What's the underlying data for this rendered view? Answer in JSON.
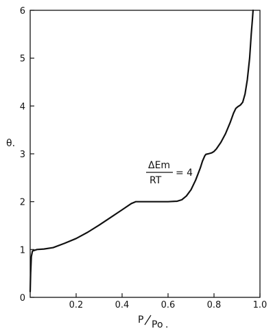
{
  "chart_data": {
    "type": "line",
    "title": "",
    "xlabel": "P/P0",
    "ylabel": "θ.",
    "xlim": [
      0,
      1.0
    ],
    "ylim": [
      0,
      6
    ],
    "xticks": [
      "0.2",
      "0.4",
      "0.6",
      "0.8",
      "1.0"
    ],
    "yticks": [
      "0",
      "1",
      "2",
      "3",
      "4",
      "5",
      "6"
    ],
    "grid": false,
    "annotation": {
      "numerator": "ΔEm",
      "denominator": "RT",
      "suffix": "= 4",
      "x": 0.73,
      "y": 2.7
    },
    "series": [
      {
        "x": [
          0,
          0.002,
          0.005,
          0.01,
          0.03,
          0.06,
          0.1,
          0.15,
          0.2,
          0.25,
          0.3,
          0.35,
          0.4,
          0.44,
          0.46,
          0.5,
          0.55,
          0.6,
          0.64,
          0.66,
          0.68,
          0.7,
          0.72,
          0.74,
          0.75,
          0.76,
          0.765,
          0.775,
          0.79,
          0.8,
          0.81,
          0.83,
          0.85,
          0.87,
          0.885,
          0.895,
          0.905,
          0.915,
          0.925,
          0.935,
          0.945,
          0.955,
          0.962,
          0.967,
          0.97
        ],
        "y": [
          0.12,
          0.5,
          0.85,
          0.97,
          1.0,
          1.01,
          1.04,
          1.13,
          1.23,
          1.36,
          1.51,
          1.67,
          1.83,
          1.96,
          2.0,
          2.0,
          2.0,
          2.0,
          2.01,
          2.04,
          2.12,
          2.25,
          2.45,
          2.7,
          2.85,
          2.96,
          2.99,
          3.0,
          3.02,
          3.05,
          3.1,
          3.24,
          3.42,
          3.65,
          3.85,
          3.95,
          3.99,
          4.02,
          4.08,
          4.25,
          4.55,
          5.0,
          5.5,
          5.8,
          6.0
        ]
      }
    ]
  },
  "labels": {
    "origin": "0",
    "xlabel_P": "P",
    "xlabel_P0": "Po",
    "xlabel_dot": ".",
    "ylabel": "θ."
  }
}
